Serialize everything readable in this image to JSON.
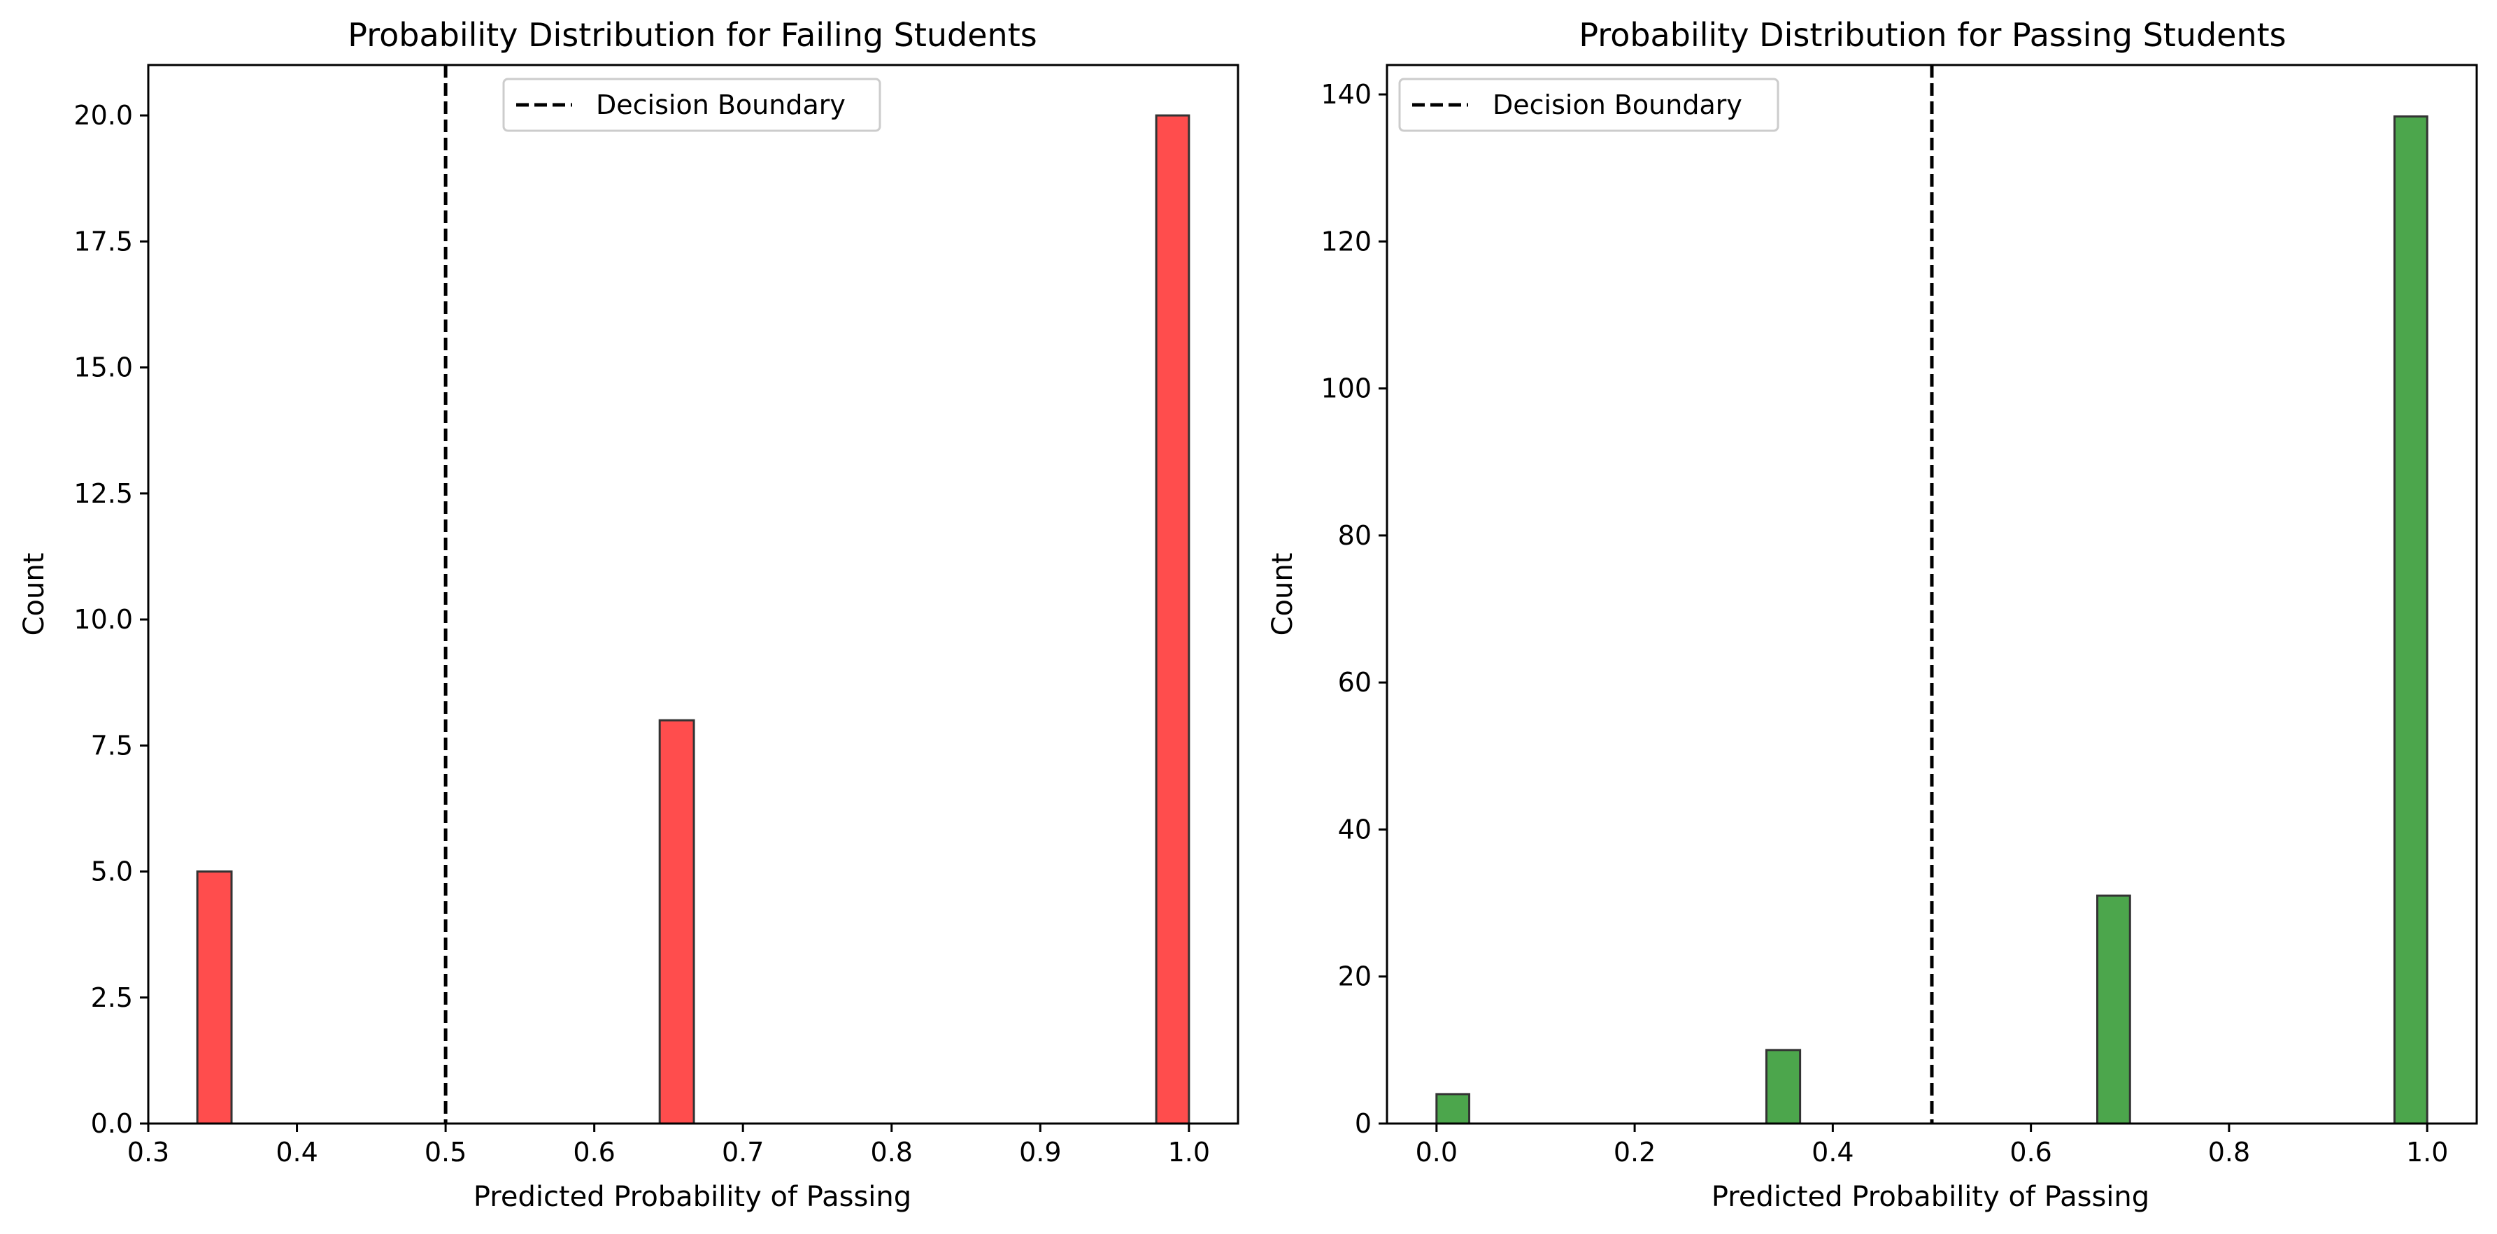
{
  "chart_data": [
    {
      "type": "bar",
      "title": "Probability Distribution for Failing Students",
      "xlabel": "Predicted Probability of Passing",
      "ylabel": "Count",
      "xlim": [
        0.3,
        1.033
      ],
      "ylim": [
        0,
        21
      ],
      "xticks": [
        0.3,
        0.4,
        0.5,
        0.6,
        0.7,
        0.8,
        0.9,
        1.0
      ],
      "xtick_labels": [
        "0.3",
        "0.4",
        "0.5",
        "0.6",
        "0.7",
        "0.8",
        "0.9",
        "1.0"
      ],
      "yticks": [
        0,
        2.5,
        5,
        7.5,
        10,
        12.5,
        15,
        17.5,
        20
      ],
      "ytick_labels": [
        "0.0",
        "2.5",
        "5.0",
        "7.5",
        "10.0",
        "12.5",
        "15.0",
        "17.5",
        "20.0"
      ],
      "bar_color": "#ff4d4d",
      "bar_edge_color": "#333333",
      "bars": [
        {
          "x0": 0.333,
          "x1": 0.356,
          "count": 5
        },
        {
          "x0": 0.644,
          "x1": 0.667,
          "count": 8
        },
        {
          "x0": 0.978,
          "x1": 1.0,
          "count": 20
        }
      ],
      "decision_boundary": 0.5,
      "legend": {
        "label": "Decision Boundary",
        "position": "upper-center"
      },
      "grid": false
    },
    {
      "type": "bar",
      "title": "Probability Distribution for Passing Students",
      "xlabel": "Predicted Probability of Passing",
      "ylabel": "Count",
      "xlim": [
        -0.05,
        1.05
      ],
      "ylim": [
        0,
        144
      ],
      "xticks": [
        0,
        0.2,
        0.4,
        0.6,
        0.8,
        1.0
      ],
      "xtick_labels": [
        "0.0",
        "0.2",
        "0.4",
        "0.6",
        "0.8",
        "1.0"
      ],
      "yticks": [
        0,
        20,
        40,
        60,
        80,
        100,
        120,
        140
      ],
      "ytick_labels": [
        "0",
        "20",
        "40",
        "60",
        "80",
        "100",
        "120",
        "140"
      ],
      "bar_color": "#4ca64c",
      "bar_edge_color": "#333333",
      "bars": [
        {
          "x0": 0.0,
          "x1": 0.033,
          "count": 4
        },
        {
          "x0": 0.333,
          "x1": 0.367,
          "count": 10
        },
        {
          "x0": 0.667,
          "x1": 0.7,
          "count": 31
        },
        {
          "x0": 0.967,
          "x1": 1.0,
          "count": 137
        }
      ],
      "decision_boundary": 0.5,
      "legend": {
        "label": "Decision Boundary",
        "position": "upper-left"
      },
      "grid": false
    }
  ]
}
